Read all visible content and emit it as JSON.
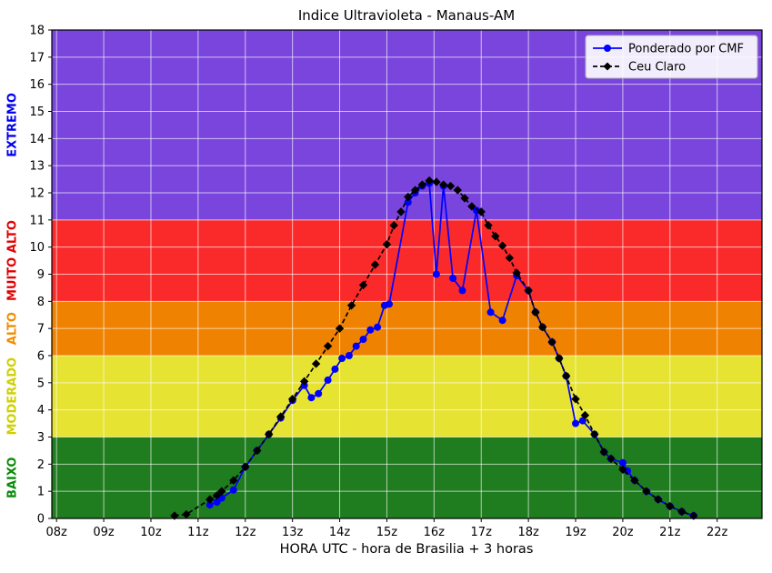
{
  "chart_data": {
    "type": "line",
    "title": "Indice Ultravioleta - Manaus-AM",
    "xlabel": "HORA UTC - hora de Brasilia + 3 horas",
    "ylabel": "",
    "xlim": [
      7.9,
      22.95
    ],
    "ylim": [
      0,
      18
    ],
    "grid": true,
    "grid_color": "rgba(255,255,255,0.65)",
    "legend_position": "upper right",
    "x_tick_values": [
      8,
      9,
      10,
      11,
      12,
      13,
      14,
      15,
      16,
      17,
      18,
      19,
      20,
      21,
      22
    ],
    "x_tick_labels": [
      "08z",
      "09z",
      "10z",
      "11z",
      "12z",
      "13z",
      "14z",
      "15z",
      "16z",
      "17z",
      "18z",
      "19z",
      "20z",
      "21z",
      "22z"
    ],
    "y_ticks": [
      0,
      1,
      2,
      3,
      4,
      5,
      6,
      7,
      8,
      9,
      10,
      11,
      12,
      13,
      14,
      15,
      16,
      17,
      18
    ],
    "bands": [
      {
        "label": "BAIXO",
        "from": 0,
        "to": 3,
        "color": "#1f7c1f",
        "label_color": "#0a8a0a"
      },
      {
        "label": "MODERADO",
        "from": 3,
        "to": 6,
        "color": "#e6e332",
        "label_color": "#cfcf00"
      },
      {
        "label": "ALTO",
        "from": 6,
        "to": 8,
        "color": "#ef8200",
        "label_color": "#f08c00"
      },
      {
        "label": "MUITO ALTO",
        "from": 8,
        "to": 11,
        "color": "#fb2a2a",
        "label_color": "#e00000"
      },
      {
        "label": "EXTREMO",
        "from": 11,
        "to": 18,
        "color": "#7a45dd",
        "label_color": "#0000ee"
      }
    ],
    "series": [
      {
        "name": "Ponderado por CMF",
        "color": "#0000ff",
        "marker": "circle",
        "dash": "solid",
        "points": [
          [
            11.25,
            0.5
          ],
          [
            11.4,
            0.6
          ],
          [
            11.5,
            0.75
          ],
          [
            11.75,
            1.05
          ],
          [
            12.0,
            1.9
          ],
          [
            12.25,
            2.5
          ],
          [
            12.5,
            3.1
          ],
          [
            12.75,
            3.7
          ],
          [
            13.0,
            4.35
          ],
          [
            13.25,
            4.9
          ],
          [
            13.4,
            4.45
          ],
          [
            13.55,
            4.6
          ],
          [
            13.75,
            5.1
          ],
          [
            13.9,
            5.5
          ],
          [
            14.05,
            5.9
          ],
          [
            14.2,
            6.0
          ],
          [
            14.35,
            6.35
          ],
          [
            14.5,
            6.6
          ],
          [
            14.65,
            6.95
          ],
          [
            14.8,
            7.05
          ],
          [
            14.95,
            7.85
          ],
          [
            15.05,
            7.9
          ],
          [
            15.45,
            11.65
          ],
          [
            15.6,
            12.0
          ],
          [
            15.75,
            12.25
          ],
          [
            15.9,
            12.35
          ],
          [
            16.05,
            9.0
          ],
          [
            16.2,
            12.25
          ],
          [
            16.4,
            8.85
          ],
          [
            16.6,
            8.4
          ],
          [
            16.9,
            11.35
          ],
          [
            17.2,
            7.6
          ],
          [
            17.45,
            7.3
          ],
          [
            17.75,
            8.95
          ],
          [
            18.0,
            8.4
          ],
          [
            18.15,
            7.6
          ],
          [
            18.3,
            7.05
          ],
          [
            18.5,
            6.5
          ],
          [
            18.65,
            5.9
          ],
          [
            18.8,
            5.25
          ],
          [
            19.0,
            3.5
          ],
          [
            19.15,
            3.6
          ],
          [
            19.4,
            3.1
          ],
          [
            19.6,
            2.45
          ],
          [
            19.75,
            2.2
          ],
          [
            20.0,
            2.05
          ],
          [
            20.1,
            1.75
          ],
          [
            20.25,
            1.4
          ],
          [
            20.5,
            1.0
          ],
          [
            20.75,
            0.7
          ],
          [
            21.0,
            0.45
          ],
          [
            21.25,
            0.25
          ],
          [
            21.5,
            0.1
          ]
        ]
      },
      {
        "name": "Ceu Claro",
        "color": "#000000",
        "marker": "diamond",
        "dash": "dashed",
        "points": [
          [
            10.5,
            0.1
          ],
          [
            10.75,
            0.15
          ],
          [
            11.25,
            0.7
          ],
          [
            11.4,
            0.85
          ],
          [
            11.5,
            1.0
          ],
          [
            11.75,
            1.4
          ],
          [
            12.0,
            1.9
          ],
          [
            12.25,
            2.5
          ],
          [
            12.5,
            3.1
          ],
          [
            12.75,
            3.75
          ],
          [
            13.0,
            4.4
          ],
          [
            13.25,
            5.05
          ],
          [
            13.5,
            5.7
          ],
          [
            13.75,
            6.35
          ],
          [
            14.0,
            7.0
          ],
          [
            14.25,
            7.85
          ],
          [
            14.5,
            8.6
          ],
          [
            14.75,
            9.35
          ],
          [
            15.0,
            10.1
          ],
          [
            15.15,
            10.8
          ],
          [
            15.3,
            11.3
          ],
          [
            15.45,
            11.85
          ],
          [
            15.6,
            12.1
          ],
          [
            15.75,
            12.3
          ],
          [
            15.9,
            12.45
          ],
          [
            16.05,
            12.4
          ],
          [
            16.2,
            12.3
          ],
          [
            16.35,
            12.25
          ],
          [
            16.5,
            12.1
          ],
          [
            16.65,
            11.8
          ],
          [
            16.8,
            11.5
          ],
          [
            17.0,
            11.3
          ],
          [
            17.15,
            10.8
          ],
          [
            17.3,
            10.4
          ],
          [
            17.45,
            10.05
          ],
          [
            17.6,
            9.6
          ],
          [
            17.75,
            9.05
          ],
          [
            18.0,
            8.4
          ],
          [
            18.15,
            7.6
          ],
          [
            18.3,
            7.05
          ],
          [
            18.5,
            6.5
          ],
          [
            18.65,
            5.9
          ],
          [
            18.8,
            5.25
          ],
          [
            19.0,
            4.4
          ],
          [
            19.2,
            3.8
          ],
          [
            19.4,
            3.1
          ],
          [
            19.6,
            2.45
          ],
          [
            19.75,
            2.2
          ],
          [
            20.0,
            1.8
          ],
          [
            20.25,
            1.4
          ],
          [
            20.5,
            1.0
          ],
          [
            20.75,
            0.7
          ],
          [
            21.0,
            0.45
          ],
          [
            21.25,
            0.25
          ],
          [
            21.5,
            0.1
          ]
        ]
      }
    ]
  }
}
